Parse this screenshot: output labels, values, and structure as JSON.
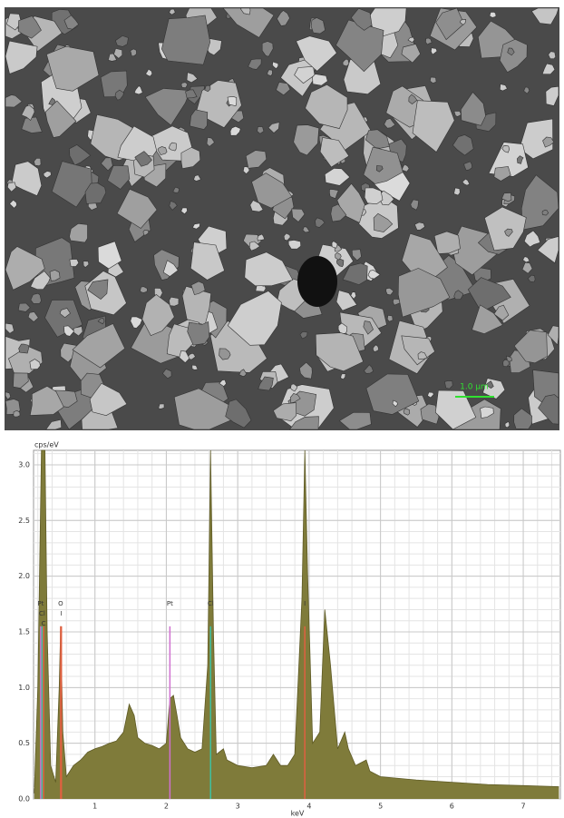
{
  "image": {
    "scale_bar": "1.0 µm"
  },
  "chart_data": {
    "type": "area",
    "y_label": "cps/eV",
    "x_label": "keV",
    "color": "#7f7b3a",
    "grid": true,
    "x": [
      0.15,
      0.2,
      0.25,
      0.3,
      0.33,
      0.38,
      0.45,
      0.5,
      0.52,
      0.55,
      0.6,
      0.7,
      0.8,
      0.9,
      1.0,
      1.1,
      1.2,
      1.3,
      1.4,
      1.48,
      1.55,
      1.6,
      1.7,
      1.8,
      1.9,
      2.0,
      2.05,
      2.1,
      2.15,
      2.2,
      2.3,
      2.4,
      2.5,
      2.58,
      2.62,
      2.66,
      2.7,
      2.8,
      2.85,
      3.0,
      3.2,
      3.4,
      3.5,
      3.6,
      3.7,
      3.8,
      3.9,
      3.94,
      3.98,
      4.05,
      4.15,
      4.22,
      4.3,
      4.4,
      4.5,
      4.55,
      4.65,
      4.8,
      4.85,
      5.0,
      5.5,
      6.0,
      6.5,
      7.0,
      7.5
    ],
    "values": [
      0.05,
      1.0,
      3.13,
      3.13,
      1.5,
      0.3,
      0.15,
      1.0,
      1.55,
      0.6,
      0.2,
      0.3,
      0.35,
      0.42,
      0.45,
      0.47,
      0.5,
      0.52,
      0.6,
      0.85,
      0.75,
      0.55,
      0.5,
      0.48,
      0.45,
      0.5,
      0.9,
      0.93,
      0.75,
      0.55,
      0.45,
      0.42,
      0.45,
      1.2,
      3.13,
      1.5,
      0.4,
      0.45,
      0.35,
      0.3,
      0.28,
      0.3,
      0.4,
      0.3,
      0.3,
      0.4,
      1.8,
      3.13,
      2.0,
      0.5,
      0.6,
      1.7,
      1.2,
      0.45,
      0.6,
      0.45,
      0.3,
      0.35,
      0.25,
      0.2,
      0.17,
      0.15,
      0.13,
      0.12,
      0.11
    ],
    "xlim": [
      0.14,
      7.52
    ],
    "ylim": [
      0,
      3.13
    ],
    "xticks": [
      1,
      2,
      3,
      4,
      5,
      6,
      7
    ],
    "yticks": [
      {
        "value": 0,
        "label": "0.0"
      },
      {
        "value": 0.5,
        "label": "0.5"
      },
      {
        "value": 1,
        "label": "1.0"
      },
      {
        "value": 1.5,
        "label": "1.5"
      },
      {
        "value": 2,
        "label": "2.0"
      },
      {
        "value": 2.5,
        "label": "2.5"
      },
      {
        "value": 3,
        "label": "3.0"
      }
    ],
    "markers": [
      {
        "label": "Pt",
        "x": 0.24,
        "height": 1.55,
        "color": "#d070d0"
      },
      {
        "label": "Cl",
        "x": 0.26,
        "height": 1.55,
        "color": "#40c0a0"
      },
      {
        "label": "C",
        "x": 0.28,
        "height": 1.55,
        "color": "#e06040"
      },
      {
        "label": "O",
        "x": 0.52,
        "height": 1.55,
        "color": "#e06040"
      },
      {
        "label": "I",
        "x": 0.53,
        "height": 1.55,
        "color": "#e06040"
      },
      {
        "label": "Pt",
        "x": 2.05,
        "height": 1.55,
        "color": "#d070d0"
      },
      {
        "label": "Cl",
        "x": 2.62,
        "height": 1.55,
        "color": "#40c0a0"
      },
      {
        "label": "I",
        "x": 3.94,
        "height": 1.55,
        "color": "#e06040"
      }
    ]
  }
}
